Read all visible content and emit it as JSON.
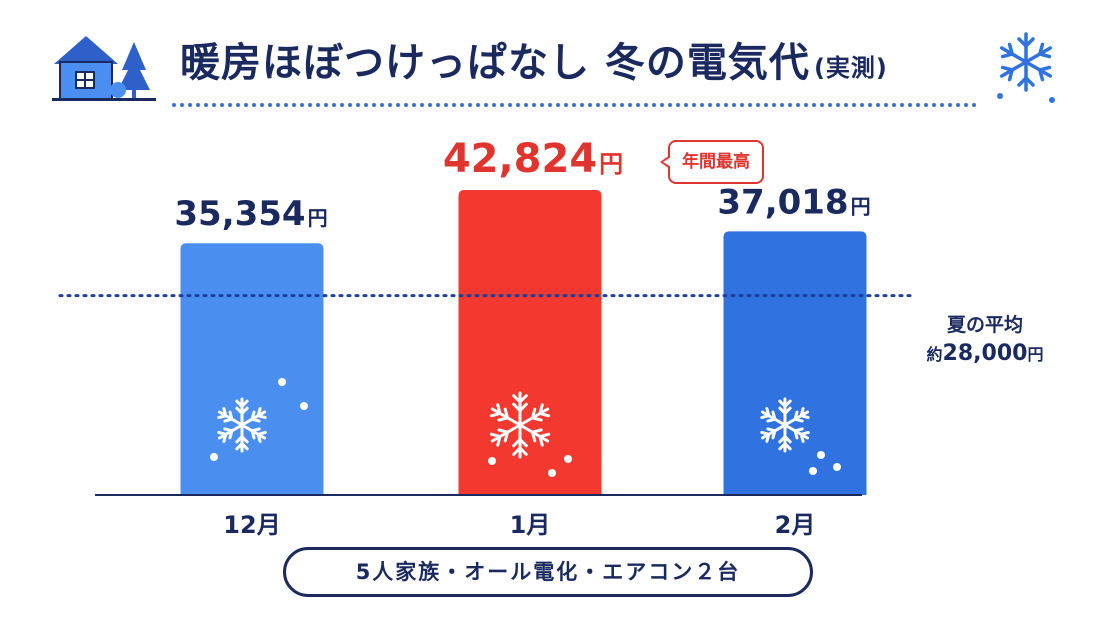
{
  "header": {
    "title": "暖房ほぼつけっぱなし 冬の電気代",
    "subtitle": "(実測)"
  },
  "badge": {
    "label": "年間最高"
  },
  "average": {
    "label": "夏の平均",
    "prefix": "約",
    "value_text": "28,000",
    "unit": "円"
  },
  "footer": {
    "text": "5人家族・オール電化・エアコン２台"
  },
  "colors": {
    "navy": "#1a2a5e",
    "bar_december": "#4a8ff0",
    "bar_january": "#f2382f",
    "bar_february": "#2f72e0",
    "highlight_red": "#e0342f"
  },
  "chart_data": {
    "type": "bar",
    "categories": [
      "12月",
      "1月",
      "2月"
    ],
    "values": [
      35354,
      42824,
      37018
    ],
    "value_labels": [
      "35,354",
      "42,824",
      "37,018"
    ],
    "unit": "円",
    "reference_line": {
      "label": "夏の平均",
      "value": 28000
    },
    "ylim": [
      0,
      42824
    ],
    "grid": false,
    "legend": "none"
  }
}
